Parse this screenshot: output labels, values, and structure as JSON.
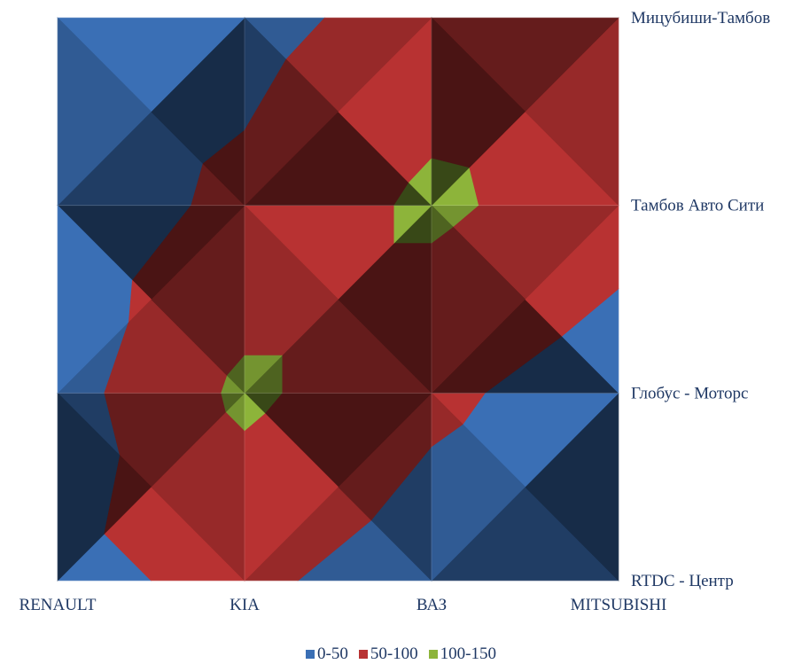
{
  "chart_data": {
    "type": "surface-contour",
    "title": "",
    "x_categories": [
      "RENAULT",
      "KIA",
      "ВАЗ",
      "MITSUBISHI"
    ],
    "y_categories": [
      "RTDC - Центр",
      "Глобус - Моторс",
      "Тамбов Авто Сити",
      "Мицубиши-Тамбов"
    ],
    "grid_values": [
      [
        40,
        60,
        25,
        10
      ],
      [
        30,
        110,
        60,
        25
      ],
      [
        25,
        60,
        110,
        70
      ],
      [
        30,
        35,
        70,
        90
      ]
    ],
    "bands": [
      {
        "name": "0-50",
        "min": 0,
        "max": 50,
        "color": "#3a6fb5"
      },
      {
        "name": "50-100",
        "min": 50,
        "max": 100,
        "color": "#b83232"
      },
      {
        "name": "100-150",
        "min": 100,
        "max": 150,
        "color": "#8db43a"
      }
    ],
    "legend_position": "bottom"
  }
}
